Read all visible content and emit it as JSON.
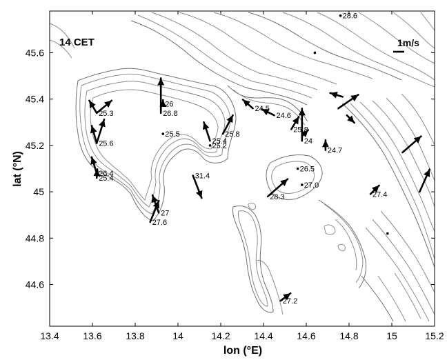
{
  "map": {
    "time_label": "14 CET",
    "xlabel": "lon (°E)",
    "ylabel": "lat (°N)",
    "scale_label": "1m/s",
    "lon_range": [
      13.4,
      15.2
    ],
    "lat_range": [
      44.42,
      45.78
    ],
    "lon_ticks": [
      "13.4",
      "13.6",
      "13.8",
      "14",
      "14.2",
      "14.4",
      "14.6",
      "14.8",
      "15",
      "15.2"
    ],
    "lat_ticks": [
      "44.6",
      "44.8",
      "45",
      "45.2",
      "45.4",
      "45.6"
    ],
    "colors": {
      "contour": "#8c8c8c",
      "vector": "#000000"
    }
  },
  "stations": [
    {
      "lon": 13.62,
      "lat": 45.34,
      "u": -0.6,
      "v": 1.0,
      "label": "25.3"
    },
    {
      "lon": 13.62,
      "lat": 45.34,
      "u": 1.2,
      "v": 1.0,
      "label": ""
    },
    {
      "lon": 13.62,
      "lat": 45.21,
      "u": 0.6,
      "v": 1.9,
      "label": "25.6"
    },
    {
      "lon": 13.62,
      "lat": 45.21,
      "u": -0.4,
      "v": 1.4,
      "label": ""
    },
    {
      "lon": 13.62,
      "lat": 45.08,
      "u": -0.4,
      "v": 1.3,
      "label": "26.4"
    },
    {
      "lon": 13.62,
      "lat": 45.06,
      "u": 0.05,
      "v": 0.7,
      "label": "25.4"
    },
    {
      "lon": 13.92,
      "lat": 45.34,
      "u": 0.0,
      "v": 2.8,
      "label": "26.8"
    },
    {
      "lon": 13.93,
      "lat": 45.38,
      "u": 0.0,
      "v": 0.3,
      "label": "26"
    },
    {
      "lon": 13.87,
      "lat": 44.87,
      "u": 0.7,
      "v": 1.7,
      "label": "27.6"
    },
    {
      "lon": 13.91,
      "lat": 44.91,
      "u": -0.5,
      "v": 1.4,
      "label": "27"
    },
    {
      "lon": 13.93,
      "lat": 45.25,
      "u": 0.0,
      "v": 0.0,
      "label": "25.5"
    },
    {
      "lon": 14.15,
      "lat": 45.22,
      "u": -0.5,
      "v": 1.5,
      "label": "25.4"
    },
    {
      "lon": 14.21,
      "lat": 45.25,
      "u": 0.8,
      "v": 1.5,
      "label": "25.8"
    },
    {
      "lon": 14.15,
      "lat": 45.2,
      "u": 0.0,
      "v": 0.0,
      "label": "25.2"
    },
    {
      "lon": 14.07,
      "lat": 45.07,
      "u": 0.7,
      "v": -1.8,
      "label": "31.4"
    },
    {
      "lon": 14.35,
      "lat": 45.36,
      "u": -0.8,
      "v": 0.7,
      "label": "24.5"
    },
    {
      "lon": 14.45,
      "lat": 45.33,
      "u": -1.0,
      "v": 0.5,
      "label": "24.6"
    },
    {
      "lon": 14.53,
      "lat": 45.27,
      "u": 0.6,
      "v": 1.0,
      "label": "25.8"
    },
    {
      "lon": 14.58,
      "lat": 45.22,
      "u": 0.0,
      "v": 2.6,
      "label": "24"
    },
    {
      "lon": 14.58,
      "lat": 45.24,
      "u": 0.5,
      "v": 0.5,
      "label": ""
    },
    {
      "lon": 14.42,
      "lat": 44.98,
      "u": 1.6,
      "v": 1.4,
      "label": "28.3"
    },
    {
      "lon": 14.56,
      "lat": 45.1,
      "u": 0.0,
      "v": 0.0,
      "label": "26.5"
    },
    {
      "lon": 14.58,
      "lat": 45.03,
      "u": 0.0,
      "v": 0.0,
      "label": "27.0"
    },
    {
      "lon": 14.69,
      "lat": 45.18,
      "u": 0.0,
      "v": 0.8,
      "label": "24.7"
    },
    {
      "lon": 14.75,
      "lat": 45.36,
      "u": 1.6,
      "v": 1.1,
      "label": ""
    },
    {
      "lon": 14.77,
      "lat": 45.41,
      "u": -1.0,
      "v": 0.3,
      "label": ""
    },
    {
      "lon": 14.79,
      "lat": 45.33,
      "u": 0.6,
      "v": -0.6,
      "label": ""
    },
    {
      "lon": 14.76,
      "lat": 45.76,
      "u": 0.0,
      "v": 0.0,
      "label": "28.6"
    },
    {
      "lon": 14.9,
      "lat": 44.99,
      "u": 0.7,
      "v": 0.7,
      "label": "27.4"
    },
    {
      "lon": 15.05,
      "lat": 45.17,
      "u": 1.5,
      "v": 1.3,
      "label": ""
    },
    {
      "lon": 15.13,
      "lat": 45.0,
      "u": 0.8,
      "v": 1.8,
      "label": ""
    },
    {
      "lon": 14.48,
      "lat": 44.53,
      "u": 0.8,
      "v": 0.6,
      "label": "27.2"
    }
  ]
}
